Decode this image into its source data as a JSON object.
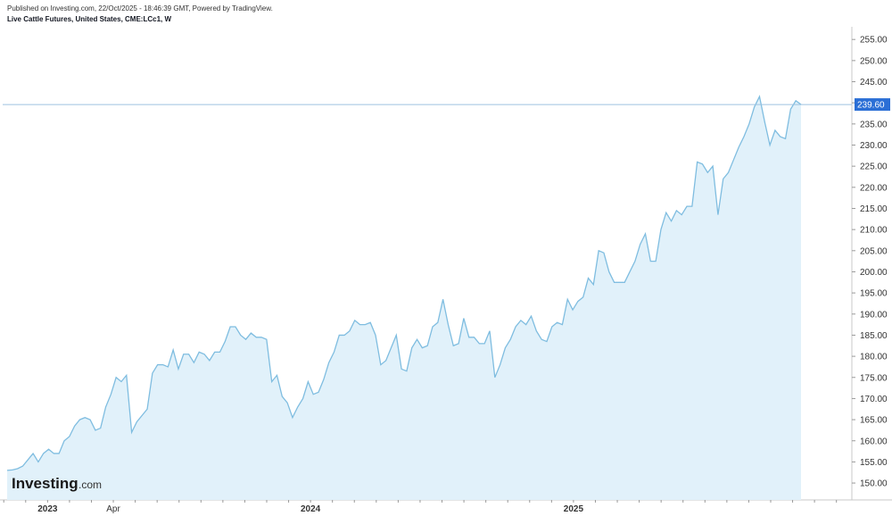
{
  "header": {
    "published": "Published on Investing.com, 22/Oct/2025 - 18:46:39 GMT, Powered by TradingView.",
    "title": "Live Cattle Futures, United States, CME:LCc1, W"
  },
  "logo": {
    "main": "Investing",
    "suffix": ".com"
  },
  "colors": {
    "line": "#7fbde0",
    "fill": "#e1f1fa",
    "price_tag": "#2b6fd6",
    "price_line": "#9dc2e0",
    "grid": "#e6e6e6"
  },
  "chart_data": {
    "type": "area",
    "ylim": [
      146,
      258
    ],
    "y_ticks": [
      "150.00",
      "155.00",
      "160.00",
      "165.00",
      "170.00",
      "175.00",
      "180.00",
      "185.00",
      "190.00",
      "195.00",
      "200.00",
      "205.00",
      "210.00",
      "215.00",
      "220.00",
      "225.00",
      "230.00",
      "235.00",
      "240.00",
      "245.00",
      "250.00",
      "255.00"
    ],
    "x_axis_labels": [
      {
        "label": "2023",
        "week": 8,
        "major": true
      },
      {
        "label": "Apr",
        "week": 21,
        "major": false
      },
      {
        "label": "2024",
        "week": 60,
        "major": true
      },
      {
        "label": "2025",
        "week": 112,
        "major": true
      }
    ],
    "last_price": {
      "label": "239.60",
      "value": 239.6
    },
    "x_end_week": 157,
    "series": [
      {
        "values": [
          153.0,
          153.1,
          153.4,
          154.0,
          155.5,
          157.0,
          155.0,
          157.0,
          158.0,
          157.0,
          157.0,
          160.0,
          161.0,
          163.5,
          165.0,
          165.5,
          165.0,
          162.5,
          163.0,
          168.0,
          171.0,
          175.0,
          174.0,
          175.5,
          162.0,
          164.5,
          166.0,
          167.5,
          176.0,
          178.0,
          178.0,
          177.5,
          181.5,
          177.0,
          180.5,
          180.5,
          178.5,
          181.0,
          180.5,
          179.0,
          181.0,
          181.0,
          183.5,
          187.0,
          187.0,
          185.0,
          184.0,
          185.5,
          184.5,
          184.5,
          184.0,
          174.0,
          175.5,
          170.5,
          169.0,
          165.5,
          168.0,
          170.0,
          174.0,
          171.0,
          171.5,
          174.5,
          178.5,
          181.0,
          185.0,
          185.0,
          186.0,
          188.5,
          187.5,
          187.5,
          188.0,
          185.0,
          178.0,
          179.0,
          182.0,
          185.0,
          177.0,
          176.5,
          182.0,
          184.0,
          182.0,
          182.5,
          187.0,
          188.0,
          193.5,
          187.5,
          182.5,
          183.0,
          189.0,
          184.5,
          184.5,
          183.0,
          183.0,
          186.0,
          175.0,
          178.0,
          182.0,
          184.0,
          187.0,
          188.5,
          187.5,
          189.5,
          186.0,
          184.0,
          183.5,
          187.0,
          188.0,
          187.5,
          193.5,
          191.0,
          193.0,
          194.0,
          198.5,
          197.0,
          205.0,
          204.5,
          200.0,
          197.5,
          197.5,
          197.5,
          200.0,
          202.5,
          206.5,
          209.0,
          202.5,
          202.5,
          210.0,
          214.0,
          212.0,
          214.5,
          213.5,
          215.5,
          215.5,
          226.0,
          225.5,
          223.5,
          225.0,
          213.5,
          222.0,
          223.5,
          226.5,
          229.5,
          232.0,
          235.0,
          239.0,
          241.5,
          235.5,
          230.0,
          233.5,
          232.0,
          231.5,
          238.5,
          240.5,
          239.6
        ]
      }
    ]
  }
}
